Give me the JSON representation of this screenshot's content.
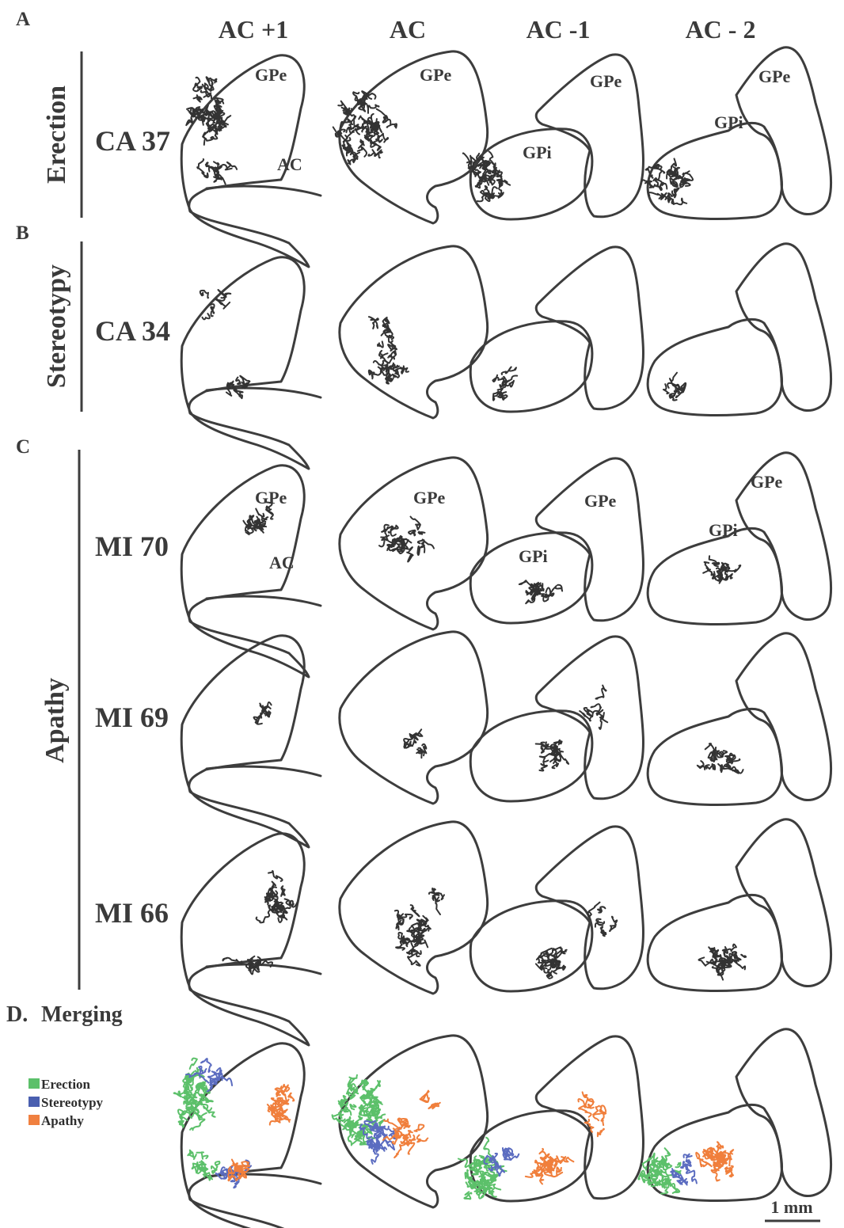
{
  "panels": {
    "a": "A",
    "b": "B",
    "c": "C",
    "d": "D.",
    "d_title": "Merging"
  },
  "columns": [
    "AC +1",
    "AC",
    "AC -1",
    "AC - 2"
  ],
  "groups": {
    "erection": "Erection",
    "stereotypy": "Stereotypy",
    "apathy": "Apathy"
  },
  "rows": {
    "ca37": "CA 37",
    "ca34": "CA 34",
    "mi70": "MI 70",
    "mi69": "MI 69",
    "mi66": "MI 66"
  },
  "regions": {
    "gpe": "GPe",
    "gpi": "GPi",
    "ac": "AC"
  },
  "legend": [
    {
      "label": "Erection",
      "color": "#5cc06a"
    },
    {
      "label": "Stereotypy",
      "color": "#4a5fb0"
    },
    {
      "label": "Apathy",
      "color": "#f08040"
    }
  ],
  "colors": {
    "outline": "#3d3d3d",
    "fiber": "#333333",
    "erection": "#5cc06a",
    "stereotypy": "#5b6cc0",
    "apathy": "#f07f3c"
  },
  "scale_bar": "1 mm"
}
